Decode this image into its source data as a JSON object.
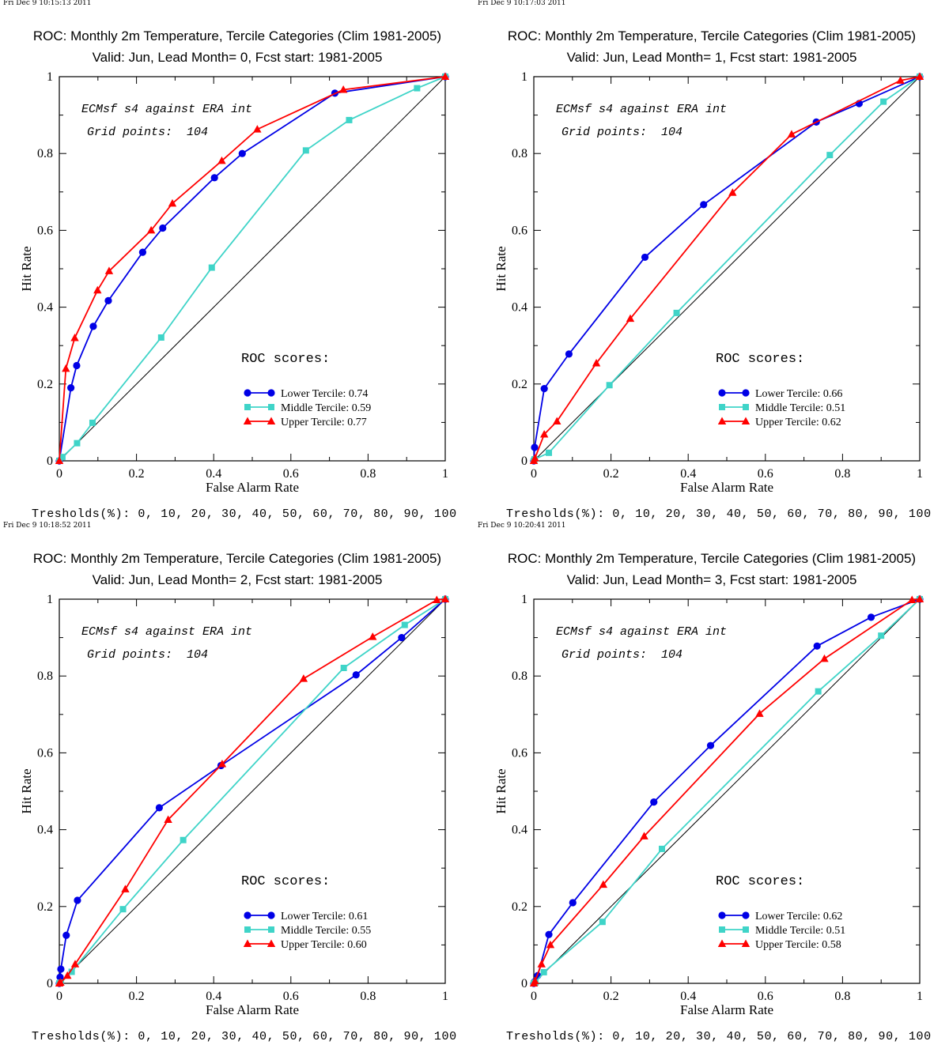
{
  "page": {
    "thresholds_label": "Tresholds(%): 0, 10, 20, 30, 40, 50, 60, 70, 80, 90, 100"
  },
  "colors": {
    "lower": "#0000e6",
    "middle": "#3fd4c8",
    "upper": "#ff0000",
    "diagonal": "#000000"
  },
  "chart_data": [
    {
      "type": "line",
      "timestamp": "Fri Dec  9 10:15:13 2011",
      "title": "ROC: Monthly 2m Temperature, Tercile Categories (Clim 1981-2005)",
      "subtitle": "Valid: Jun, Lead Month= 0, Fcst start: 1981-2005",
      "xlabel": "False Alarm Rate",
      "ylabel": "Hit Rate",
      "xlim": [
        0,
        1
      ],
      "ylim": [
        0,
        1
      ],
      "xticks": [
        "0",
        "0.2",
        "0.4",
        "0.6",
        "0.8",
        "1"
      ],
      "yticks": [
        "0",
        "0.2",
        "0.4",
        "0.6",
        "0.8",
        "1"
      ],
      "annotations": [
        "ECMsf s4 against ERA int",
        "Grid points:  104"
      ],
      "scores_title": "ROC scores:",
      "series": [
        {
          "name": "Lower Tercile",
          "score": "0.74",
          "marker": "circle",
          "x": [
            0,
            0.03,
            0.045,
            0.088,
            0.127,
            0.216,
            0.268,
            0.402,
            0.474,
            0.714,
            1
          ],
          "y": [
            0,
            0.19,
            0.248,
            0.35,
            0.417,
            0.543,
            0.606,
            0.737,
            0.8,
            0.957,
            1
          ]
        },
        {
          "name": "Middle Tercile",
          "score": "0.59",
          "marker": "square",
          "x": [
            0,
            0.008,
            0.046,
            0.086,
            0.264,
            0.395,
            0.639,
            0.751,
            0.927,
            1
          ],
          "y": [
            0,
            0.01,
            0.046,
            0.099,
            0.321,
            0.503,
            0.808,
            0.887,
            0.97,
            1
          ]
        },
        {
          "name": "Upper Tercile",
          "score": "0.77",
          "marker": "triangle",
          "x": [
            0,
            0.017,
            0.04,
            0.099,
            0.129,
            0.238,
            0.293,
            0.421,
            0.513,
            0.736,
            1
          ],
          "y": [
            0,
            0.24,
            0.32,
            0.444,
            0.494,
            0.6,
            0.67,
            0.781,
            0.863,
            0.966,
            1
          ]
        }
      ]
    },
    {
      "type": "line",
      "timestamp": "Fri Dec  9 10:17:03 2011",
      "title": "ROC: Monthly 2m Temperature, Tercile Categories (Clim 1981-2005)",
      "subtitle": "Valid: Jun, Lead Month= 1, Fcst start: 1981-2005",
      "xlabel": "False Alarm Rate",
      "ylabel": "Hit Rate",
      "xlim": [
        0,
        1
      ],
      "ylim": [
        0,
        1
      ],
      "xticks": [
        "0",
        "0.2",
        "0.4",
        "0.6",
        "0.8",
        "1"
      ],
      "yticks": [
        "0",
        "0.2",
        "0.4",
        "0.6",
        "0.8",
        "1"
      ],
      "annotations": [
        "ECMsf s4 against ERA int",
        "Grid points:  104"
      ],
      "scores_title": "ROC scores:",
      "series": [
        {
          "name": "Lower Tercile",
          "score": "0.66",
          "marker": "circle",
          "x": [
            0,
            0.002,
            0.027,
            0.091,
            0.288,
            0.44,
            0.732,
            0.843,
            1
          ],
          "y": [
            0,
            0.035,
            0.188,
            0.278,
            0.53,
            0.667,
            0.882,
            0.93,
            1
          ]
        },
        {
          "name": "Middle Tercile",
          "score": "0.51",
          "marker": "square",
          "x": [
            0,
            0.002,
            0.039,
            0.196,
            0.37,
            0.767,
            0.906,
            1
          ],
          "y": [
            0,
            0.004,
            0.021,
            0.197,
            0.385,
            0.796,
            0.935,
            1
          ]
        },
        {
          "name": "Upper Tercile",
          "score": "0.62",
          "marker": "triangle",
          "x": [
            0,
            0.003,
            0.027,
            0.06,
            0.162,
            0.25,
            0.515,
            0.668,
            0.95,
            1
          ],
          "y": [
            0,
            0.007,
            0.069,
            0.103,
            0.254,
            0.37,
            0.698,
            0.85,
            0.99,
            1
          ]
        }
      ]
    },
    {
      "type": "line",
      "timestamp": "Fri Dec  9 10:18:52 2011",
      "title": "ROC: Monthly 2m Temperature, Tercile Categories (Clim 1981-2005)",
      "subtitle": "Valid: Jun, Lead Month= 2, Fcst start: 1981-2005",
      "xlabel": "False Alarm Rate",
      "ylabel": "Hit Rate",
      "xlim": [
        0,
        1
      ],
      "ylim": [
        0,
        1
      ],
      "xticks": [
        "0",
        "0.2",
        "0.4",
        "0.6",
        "0.8",
        "1"
      ],
      "yticks": [
        "0",
        "0.2",
        "0.4",
        "0.6",
        "0.8",
        "1"
      ],
      "annotations": [
        "ECMsf s4 against ERA int",
        "Grid points:  104"
      ],
      "scores_title": "ROC scores:",
      "series": [
        {
          "name": "Lower Tercile",
          "score": "0.61",
          "marker": "circle",
          "x": [
            0,
            0.002,
            0.004,
            0.018,
            0.047,
            0.259,
            0.419,
            0.769,
            0.887,
            1
          ],
          "y": [
            0,
            0.016,
            0.037,
            0.125,
            0.216,
            0.457,
            0.567,
            0.803,
            0.9,
            1
          ]
        },
        {
          "name": "Middle Tercile",
          "score": "0.55",
          "marker": "square",
          "x": [
            0,
            0.004,
            0.032,
            0.165,
            0.321,
            0.737,
            0.895,
            1
          ],
          "y": [
            0,
            0.002,
            0.03,
            0.193,
            0.373,
            0.821,
            0.933,
            1
          ]
        },
        {
          "name": "Upper Tercile",
          "score": "0.60",
          "marker": "triangle",
          "x": [
            0,
            0.003,
            0.021,
            0.041,
            0.171,
            0.282,
            0.422,
            0.633,
            0.812,
            0.978,
            1
          ],
          "y": [
            0,
            0.002,
            0.02,
            0.05,
            0.245,
            0.426,
            0.571,
            0.793,
            0.902,
            0.998,
            1
          ]
        }
      ]
    },
    {
      "type": "line",
      "timestamp": "Fri Dec  9 10:20:41 2011",
      "title": "ROC: Monthly 2m Temperature, Tercile Categories (Clim 1981-2005)",
      "subtitle": "Valid: Jun, Lead Month= 3, Fcst start: 1981-2005",
      "xlabel": "False Alarm Rate",
      "ylabel": "Hit Rate",
      "xlim": [
        0,
        1
      ],
      "ylim": [
        0,
        1
      ],
      "xticks": [
        "0",
        "0.2",
        "0.4",
        "0.6",
        "0.8",
        "1"
      ],
      "yticks": [
        "0",
        "0.2",
        "0.4",
        "0.6",
        "0.8",
        "1"
      ],
      "annotations": [
        "ECMsf s4 against ERA int",
        "Grid points:  104"
      ],
      "scores_title": "ROC scores:",
      "series": [
        {
          "name": "Lower Tercile",
          "score": "0.62",
          "marker": "circle",
          "x": [
            0,
            0.002,
            0.01,
            0.039,
            0.101,
            0.311,
            0.458,
            0.734,
            0.874,
            1
          ],
          "y": [
            0,
            0.004,
            0.02,
            0.127,
            0.21,
            0.472,
            0.619,
            0.878,
            0.953,
            1
          ]
        },
        {
          "name": "Middle Tercile",
          "score": "0.51",
          "marker": "square",
          "x": [
            0,
            0.004,
            0.026,
            0.178,
            0.332,
            0.737,
            0.9,
            1
          ],
          "y": [
            0,
            0.002,
            0.029,
            0.16,
            0.35,
            0.76,
            0.905,
            1
          ]
        },
        {
          "name": "Upper Tercile",
          "score": "0.58",
          "marker": "triangle",
          "x": [
            0,
            0.003,
            0.02,
            0.043,
            0.18,
            0.286,
            0.585,
            0.753,
            0.98,
            1
          ],
          "y": [
            0,
            0.006,
            0.05,
            0.1,
            0.257,
            0.383,
            0.702,
            0.845,
            0.998,
            1
          ]
        }
      ]
    }
  ]
}
